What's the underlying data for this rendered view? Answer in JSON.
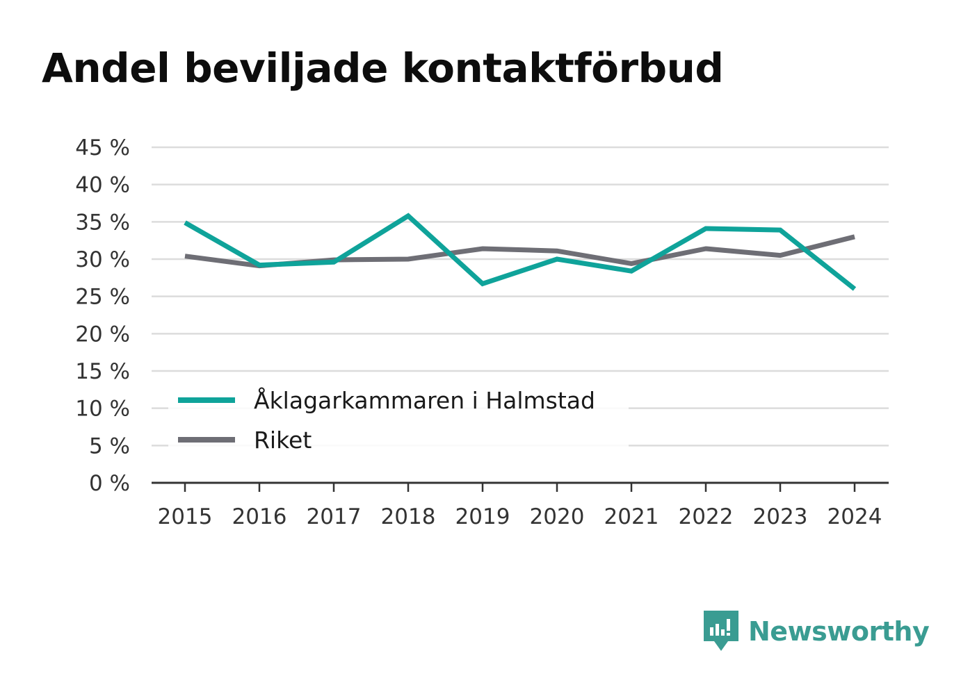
{
  "chart_data": {
    "type": "line",
    "title": "Andel beviljade kontaktförbud",
    "xlabel": "",
    "ylabel": "",
    "x": [
      "2015",
      "2016",
      "2017",
      "2018",
      "2019",
      "2020",
      "2021",
      "2022",
      "2023",
      "2024"
    ],
    "y_ticks": [
      "0 %",
      "5 %",
      "10 %",
      "15 %",
      "20 %",
      "25 %",
      "30 %",
      "35 %",
      "40 %",
      "45 %"
    ],
    "ylim": [
      0,
      45
    ],
    "grid": true,
    "legend_position": "bottom-left",
    "series": [
      {
        "name": "Åklagarkammaren i Halmstad",
        "color": "#0fa39a",
        "values": [
          34.9,
          29.2,
          29.6,
          35.8,
          26.7,
          30.0,
          28.4,
          34.1,
          33.9,
          26.0
        ]
      },
      {
        "name": "Riket",
        "color": "#6e6e75",
        "values": [
          30.4,
          29.1,
          29.9,
          30.0,
          31.4,
          31.1,
          29.4,
          31.4,
          30.5,
          33.0
        ]
      }
    ]
  },
  "colors": {
    "gridline": "#dcdcdc",
    "axis": "#333333",
    "brand": "#3a9c92"
  },
  "brand": {
    "name": "Newsworthy",
    "icon": "newsworthy-logo-icon"
  }
}
